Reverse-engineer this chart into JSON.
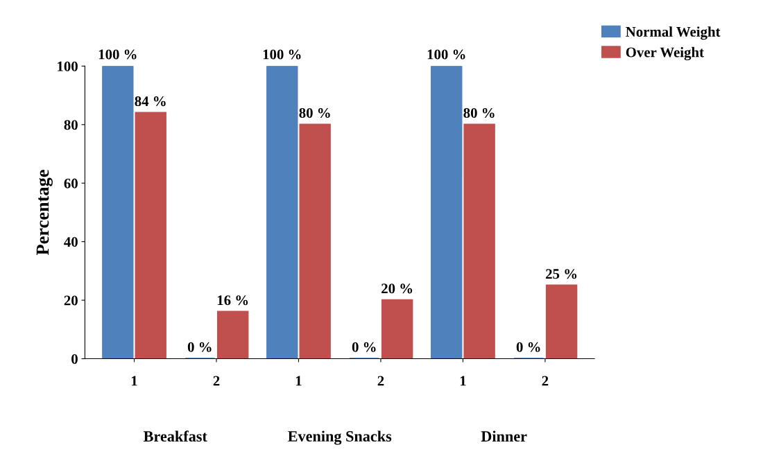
{
  "chart_data": {
    "type": "bar",
    "ylabel": "Percentage",
    "categories": [
      "1",
      "2",
      "1",
      "2",
      "1",
      "2"
    ],
    "annotations": [
      "Breakfast",
      "Evening Snacks",
      "Dinner"
    ],
    "series": [
      {
        "name": "Normal Weight",
        "color": "#4f81bd",
        "values": [
          100,
          0,
          100,
          0,
          100,
          0
        ],
        "value_labels": [
          "100 %",
          "0 %",
          "100 %",
          "0 %",
          "100 %",
          "0 %"
        ]
      },
      {
        "name": "Over Weight",
        "color": "#c0504d",
        "values": [
          84,
          16,
          80,
          20,
          80,
          25
        ],
        "value_labels": [
          "84 %",
          "16 %",
          "80 %",
          "20 %",
          "80 %",
          "25 %"
        ]
      }
    ],
    "ylim": [
      0,
      100
    ],
    "yticks": [
      0,
      20,
      40,
      60,
      80,
      100
    ],
    "grid": false,
    "legend": "top right"
  }
}
